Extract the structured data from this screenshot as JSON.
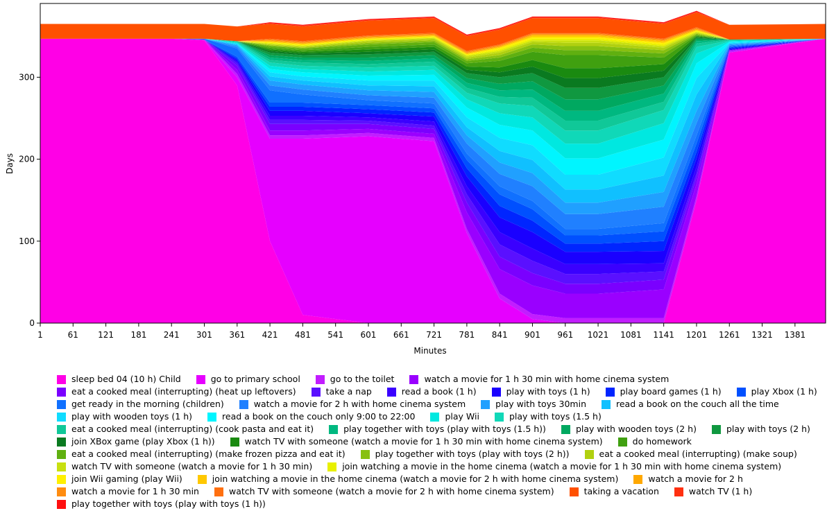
{
  "chart_data": {
    "type": "stacked_area",
    "x_label": "Minutes",
    "y_label": "Days",
    "x": [
      1,
      241,
      301,
      361,
      421,
      481,
      601,
      721,
      781,
      841,
      901,
      961,
      1021,
      1141,
      1201,
      1261,
      1437
    ],
    "xlim": [
      1,
      1437
    ],
    "xticks": [
      1,
      61,
      121,
      181,
      241,
      301,
      361,
      421,
      481,
      541,
      601,
      661,
      721,
      781,
      841,
      901,
      961,
      1021,
      1081,
      1141,
      1201,
      1261,
      1321,
      1381
    ],
    "ylim": [
      0,
      390
    ],
    "yticks": [
      0,
      100,
      200,
      300
    ],
    "series": [
      {
        "name": "sleep bed 04 (10 h) Child",
        "color": "#ff00e6",
        "values": [
          347,
          347,
          345,
          290,
          100,
          10,
          0,
          0,
          0,
          0,
          0,
          0,
          0,
          0,
          150,
          330,
          347
        ]
      },
      {
        "name": "go to primary school",
        "color": "#e600ff",
        "values": [
          0,
          0,
          0,
          10,
          125,
          215,
          228,
          222,
          110,
          30,
          5,
          0,
          0,
          0,
          0,
          0,
          0
        ]
      },
      {
        "name": "go to the toilet",
        "color": "#c21dff",
        "values": [
          0,
          0,
          1,
          4,
          4,
          4,
          4,
          4,
          5,
          6,
          6,
          6,
          6,
          6,
          5,
          2,
          0
        ]
      },
      {
        "name": "watch a movie for 1 h 30 min with home cinema system",
        "color": "#9a00ff",
        "values": [
          0,
          0,
          0,
          5,
          6,
          6,
          5,
          5,
          20,
          30,
          35,
          30,
          30,
          35,
          15,
          1,
          0
        ]
      },
      {
        "name": "eat a cooked meal (interrupting) (heat up leftovers)",
        "color": "#7a00ff",
        "values": [
          0,
          0,
          0,
          5,
          8,
          8,
          6,
          6,
          12,
          15,
          15,
          12,
          12,
          12,
          8,
          0,
          0
        ]
      },
      {
        "name": "take a nap",
        "color": "#5a10ff",
        "values": [
          0,
          0,
          0,
          3,
          5,
          5,
          4,
          4,
          10,
          15,
          15,
          12,
          12,
          10,
          5,
          0,
          0
        ]
      },
      {
        "name": "read a book  (1 h)",
        "color": "#3a00ff",
        "values": [
          0,
          0,
          0,
          2,
          5,
          5,
          4,
          5,
          10,
          15,
          15,
          12,
          12,
          10,
          8,
          1,
          0
        ]
      },
      {
        "name": "play with toys (1 h)",
        "color": "#1a00ff",
        "values": [
          0,
          0,
          0,
          2,
          6,
          6,
          5,
          6,
          12,
          18,
          20,
          15,
          15,
          15,
          10,
          1,
          0
        ]
      },
      {
        "name": "play board games (1 h)",
        "color": "#0025ff",
        "values": [
          0,
          0,
          0,
          2,
          5,
          5,
          5,
          5,
          10,
          14,
          14,
          10,
          10,
          12,
          8,
          1,
          0
        ]
      },
      {
        "name": "play Xbox (1 h)",
        "color": "#0050ff",
        "values": [
          0,
          0,
          0,
          2,
          5,
          5,
          5,
          5,
          10,
          14,
          14,
          10,
          10,
          12,
          10,
          1,
          0
        ]
      },
      {
        "name": "get ready in the morning (children)",
        "color": "#1070ff",
        "values": [
          0,
          0,
          1,
          10,
          15,
          10,
          6,
          6,
          8,
          10,
          10,
          8,
          8,
          10,
          10,
          1,
          0
        ]
      },
      {
        "name": "watch a movie for 2 h with home cinema system",
        "color": "#2080ff",
        "values": [
          0,
          0,
          0,
          2,
          6,
          6,
          6,
          7,
          12,
          15,
          18,
          18,
          18,
          20,
          15,
          1,
          0
        ]
      },
      {
        "name": "play with toys 30min",
        "color": "#20a0ff",
        "values": [
          0,
          0,
          0,
          2,
          6,
          6,
          6,
          7,
          10,
          14,
          16,
          14,
          14,
          18,
          15,
          1,
          0
        ]
      },
      {
        "name": "read a book on the couch all the time",
        "color": "#10c0ff",
        "values": [
          0,
          0,
          0,
          1,
          5,
          5,
          6,
          7,
          10,
          14,
          16,
          16,
          16,
          20,
          20,
          1,
          0
        ]
      },
      {
        "name": "play with wooden toys (1 h)",
        "color": "#10dcff",
        "values": [
          0,
          0,
          0,
          1,
          5,
          5,
          6,
          7,
          12,
          16,
          18,
          18,
          18,
          22,
          20,
          1,
          0
        ]
      },
      {
        "name": "read a book on the couch only 9:00 to 22:00",
        "color": "#00f5ff",
        "values": [
          0,
          0,
          0,
          0,
          4,
          5,
          6,
          7,
          12,
          16,
          18,
          20,
          20,
          22,
          18,
          1,
          0
        ]
      },
      {
        "name": "play Wii",
        "color": "#00e8e0",
        "values": [
          0,
          0,
          0,
          1,
          4,
          4,
          5,
          6,
          10,
          14,
          16,
          18,
          18,
          20,
          12,
          1,
          0
        ]
      },
      {
        "name": "play with toys (1.5 h)",
        "color": "#10d8b8",
        "values": [
          0,
          0,
          0,
          1,
          4,
          4,
          5,
          5,
          8,
          12,
          14,
          16,
          16,
          16,
          8,
          1,
          0
        ]
      },
      {
        "name": "eat a cooked meal (interrupting) (cook pasta and eat it)",
        "color": "#10c898",
        "values": [
          0,
          0,
          0,
          1,
          3,
          4,
          4,
          5,
          6,
          8,
          10,
          12,
          12,
          10,
          4,
          1,
          0
        ]
      },
      {
        "name": "play together with toys (play with toys (1.5 h))",
        "color": "#00b880",
        "values": [
          0,
          0,
          0,
          0,
          3,
          3,
          4,
          4,
          6,
          8,
          10,
          12,
          12,
          10,
          3,
          0,
          0
        ]
      },
      {
        "name": "play with wooden toys (2 h)",
        "color": "#00a860",
        "values": [
          0,
          0,
          0,
          0,
          3,
          3,
          4,
          4,
          6,
          8,
          10,
          14,
          14,
          10,
          2,
          0,
          0
        ]
      },
      {
        "name": "play with toys (2 h)",
        "color": "#109840",
        "values": [
          0,
          0,
          0,
          0,
          3,
          3,
          4,
          4,
          6,
          8,
          10,
          14,
          14,
          10,
          2,
          0,
          0
        ]
      },
      {
        "name": "join XBox game (play Xbox (1 h))",
        "color": "#0a7a20",
        "values": [
          0,
          0,
          0,
          0,
          2,
          2,
          3,
          3,
          4,
          6,
          8,
          12,
          12,
          8,
          1,
          0,
          0
        ]
      },
      {
        "name": "watch TV with someone (watch a movie for 1 h 30 min with home cinema system)",
        "color": "#1a8a10",
        "values": [
          0,
          0,
          0,
          0,
          2,
          2,
          3,
          3,
          4,
          6,
          8,
          12,
          12,
          8,
          1,
          0,
          0
        ]
      },
      {
        "name": "do homework",
        "color": "#40a010",
        "values": [
          0,
          0,
          0,
          0,
          2,
          2,
          3,
          3,
          4,
          8,
          10,
          16,
          16,
          8,
          1,
          0,
          0
        ]
      },
      {
        "name": "eat a cooked meal (interrupting) (make frozen pizza and eat it)",
        "color": "#60b010",
        "values": [
          0,
          0,
          0,
          0,
          2,
          2,
          3,
          3,
          3,
          4,
          5,
          6,
          6,
          5,
          1,
          0,
          0
        ]
      },
      {
        "name": "play together with toys (play with toys (2 h))",
        "color": "#88c010",
        "values": [
          0,
          0,
          0,
          0,
          1,
          1,
          2,
          2,
          2,
          3,
          4,
          5,
          5,
          4,
          1,
          0,
          0
        ]
      },
      {
        "name": "eat a cooked meal (interrupting) (make soup)",
        "color": "#b0d010",
        "values": [
          0,
          0,
          0,
          0,
          1,
          1,
          2,
          2,
          2,
          3,
          3,
          4,
          4,
          3,
          1,
          0,
          0
        ]
      },
      {
        "name": "watch TV with someone (watch a movie for 1 h 30 min)",
        "color": "#c8e010",
        "values": [
          0,
          0,
          0,
          0,
          1,
          1,
          1,
          1,
          2,
          2,
          2,
          3,
          3,
          2,
          1,
          0,
          0
        ]
      },
      {
        "name": "join watching a movie in the home cinema (watch a movie for 1 h 30 min with home cinema system)",
        "color": "#e8f000",
        "values": [
          0,
          0,
          0,
          0,
          1,
          1,
          1,
          1,
          1,
          2,
          2,
          2,
          2,
          2,
          1,
          0,
          0
        ]
      },
      {
        "name": "join Wii gaming (play Wii)",
        "color": "#fff000",
        "values": [
          0,
          0,
          0,
          0,
          1,
          1,
          1,
          1,
          1,
          2,
          2,
          2,
          2,
          2,
          1,
          0,
          0
        ]
      },
      {
        "name": "join watching a movie in the home cinema (watch a movie for 2 h with home cinema system)",
        "color": "#ffc800",
        "values": [
          0,
          0,
          0,
          0,
          1,
          1,
          1,
          1,
          1,
          1,
          2,
          2,
          2,
          2,
          1,
          0,
          0
        ]
      },
      {
        "name": "watch a movie for 2 h",
        "color": "#ffa800",
        "values": [
          0,
          0,
          0,
          0,
          1,
          1,
          1,
          1,
          1,
          1,
          1,
          1,
          1,
          1,
          1,
          0,
          0
        ]
      },
      {
        "name": "watch a movie for 1 h 30 min",
        "color": "#ff8c10",
        "values": [
          0,
          0,
          0,
          0,
          1,
          1,
          1,
          1,
          1,
          1,
          1,
          1,
          1,
          1,
          1,
          0,
          0
        ]
      },
      {
        "name": "watch TV with someone (watch a movie for 2 h with home cinema system)",
        "color": "#ff7010",
        "values": [
          0,
          0,
          0,
          0,
          1,
          1,
          1,
          1,
          1,
          1,
          1,
          1,
          1,
          1,
          1,
          0,
          0
        ]
      },
      {
        "name": "taking a vacation",
        "color": "#ff5000",
        "values": [
          18,
          18,
          18,
          18,
          18,
          18,
          18,
          18,
          18,
          18,
          18,
          18,
          18,
          18,
          18,
          18,
          18
        ]
      },
      {
        "name": "watch TV (1 h)",
        "color": "#ff3010",
        "values": [
          0,
          0,
          0,
          0,
          1,
          1,
          1,
          1,
          1,
          1,
          1,
          1,
          1,
          1,
          1,
          0,
          0
        ]
      },
      {
        "name": "play together with toys (play with toys (1 h))",
        "color": "#ff1010",
        "values": [
          0,
          0,
          0,
          0,
          1,
          1,
          1,
          1,
          1,
          1,
          1,
          1,
          1,
          1,
          1,
          0,
          0
        ]
      }
    ]
  }
}
